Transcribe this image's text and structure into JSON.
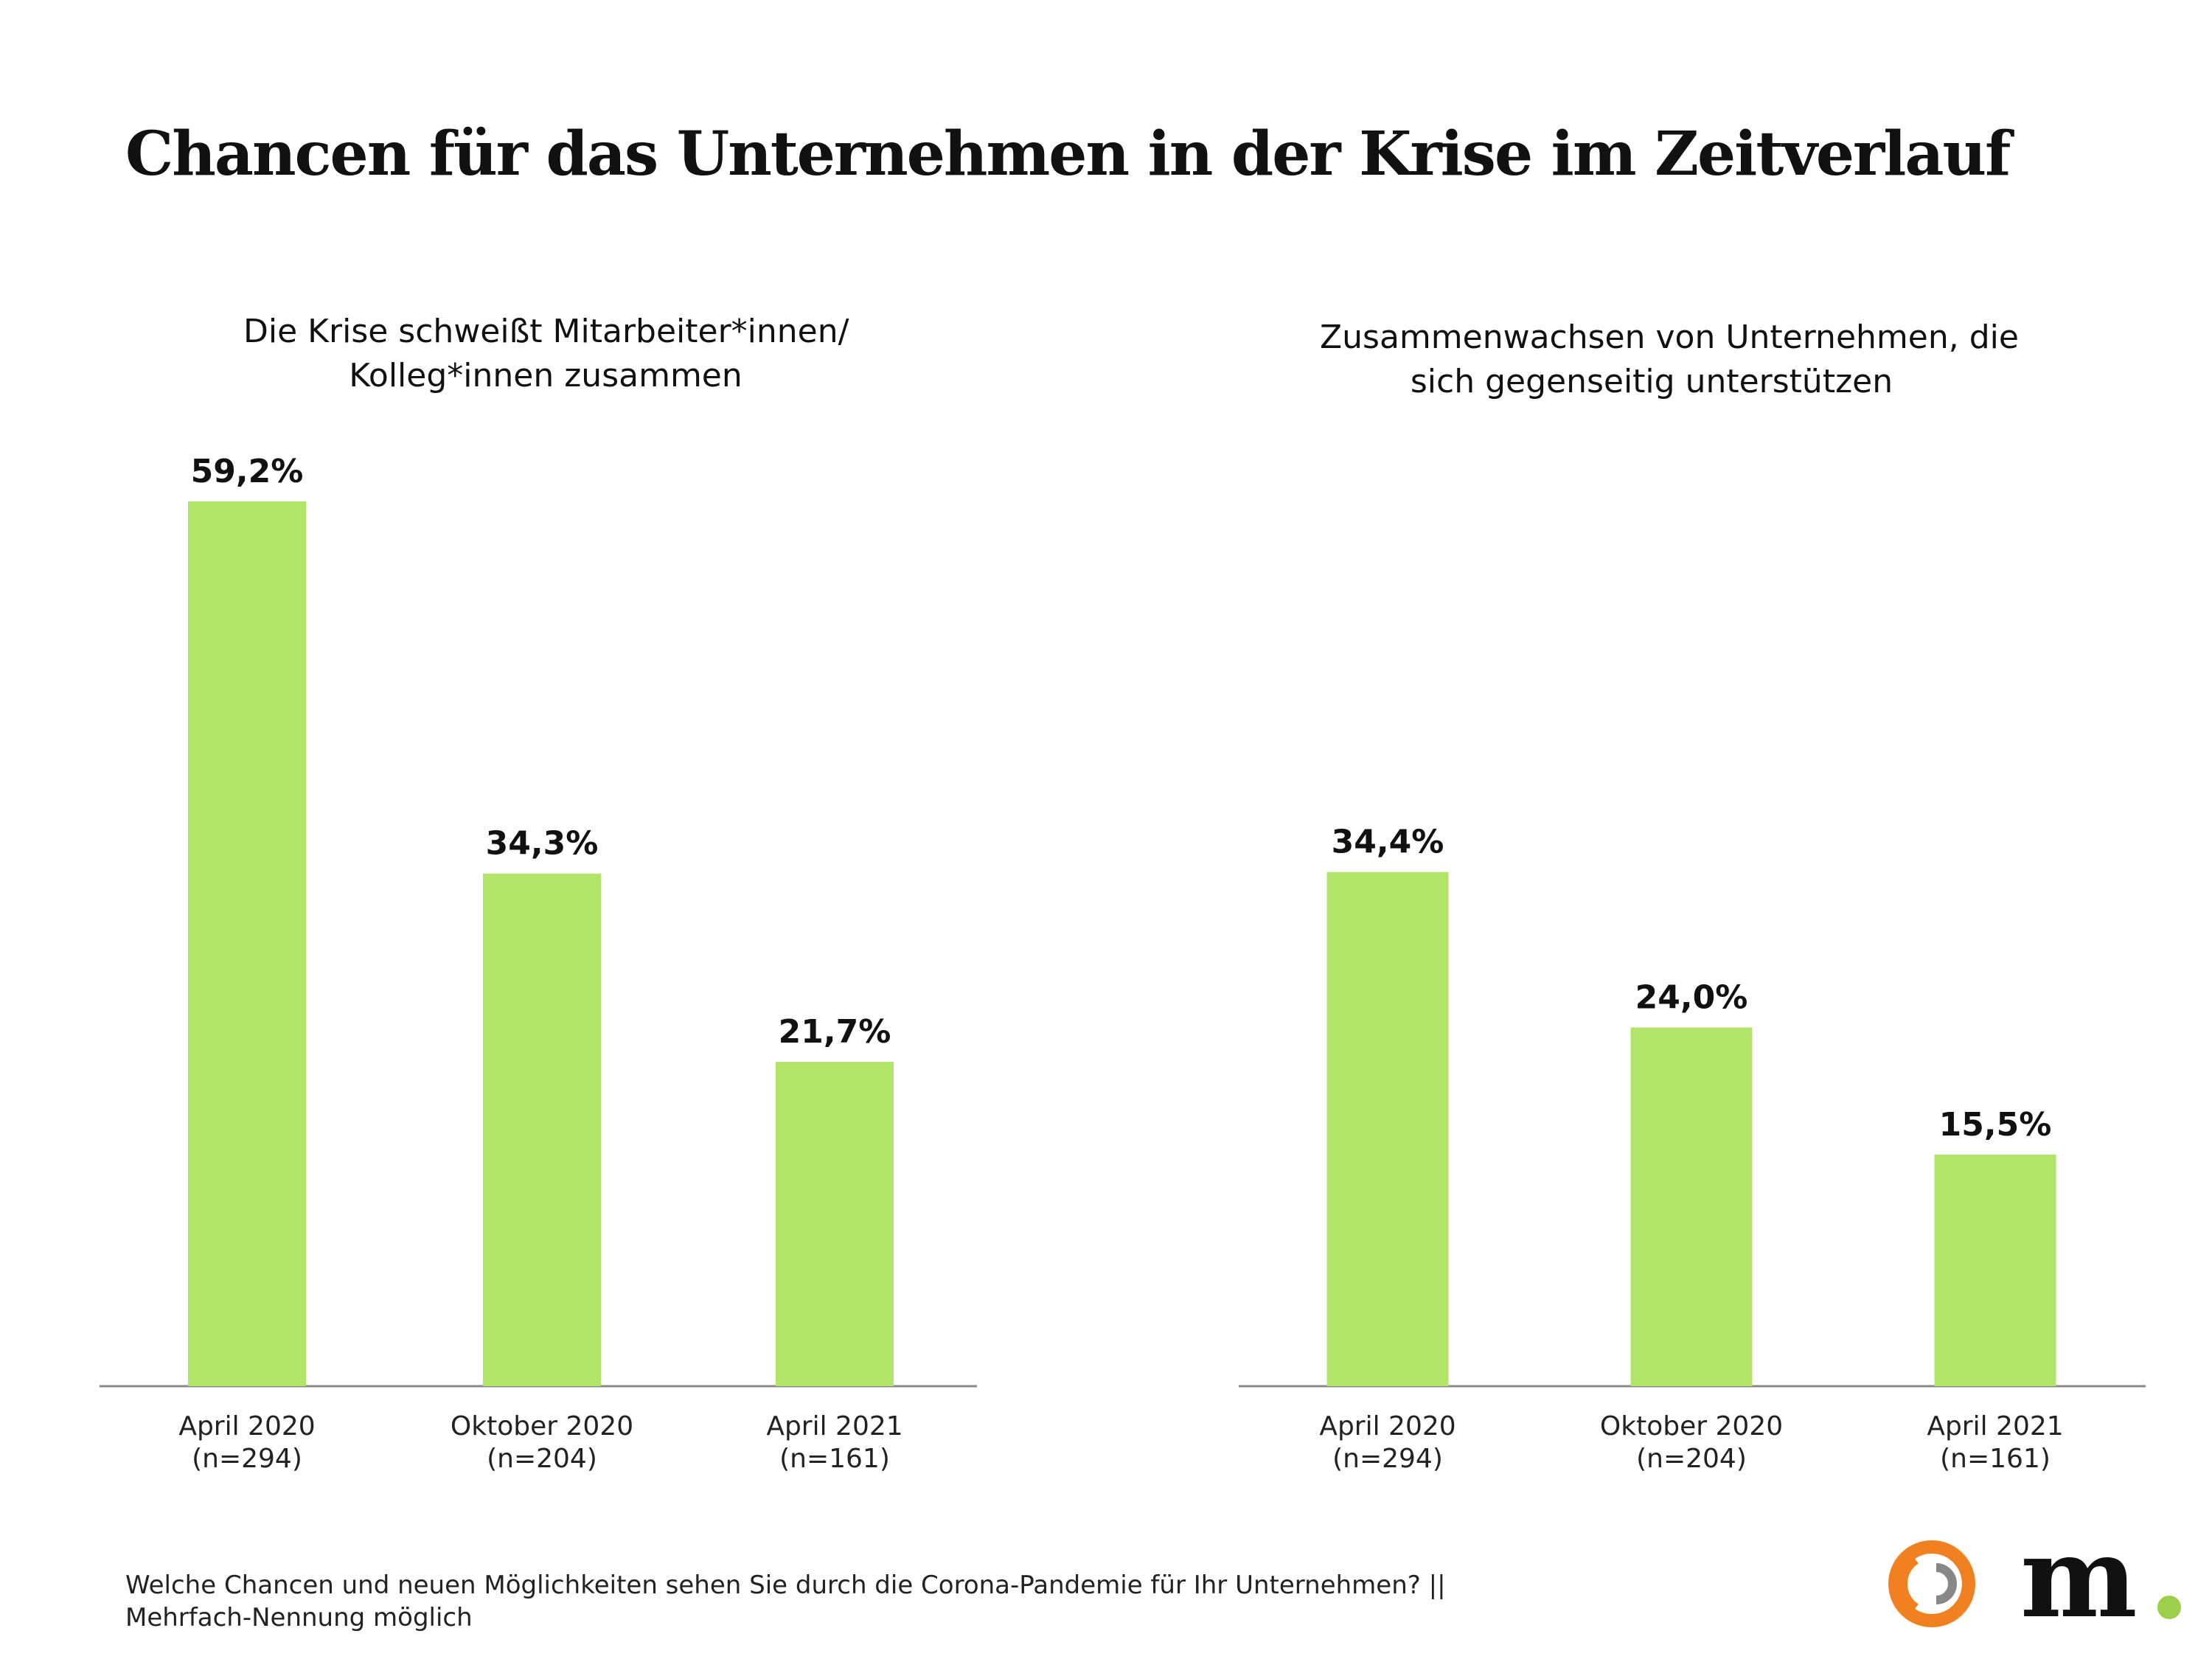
{
  "title": "Chancen für das Unternehmen in der Krise im Zeitverlauf",
  "colors": {
    "bar": "#b2e46a",
    "axis": "#888888",
    "logo_orange": "#f08020",
    "logo_grey": "#888888",
    "logo_green": "#9ecf4a"
  },
  "chart_data": [
    {
      "type": "bar",
      "title_lines": [
        "Die Krise schweißt Mitarbeiter*innen/",
        "Kolleg*innen zusammen"
      ],
      "categories": [
        "April 2020",
        "Oktober 2020",
        "April 2021"
      ],
      "category_notes": [
        "(n=294)",
        "(n=204)",
        "(n=161)"
      ],
      "values": [
        59.2,
        34.3,
        21.7
      ],
      "value_labels": [
        "59,2%",
        "34,3%",
        "21,7%"
      ],
      "ylim": [
        0,
        60
      ],
      "grid": false
    },
    {
      "type": "bar",
      "title_lines": [
        "Zusammenwachsen von Unternehmen, die",
        "sich gegenseitig unterstützen"
      ],
      "categories": [
        "April 2020",
        "Oktober 2020",
        "April 2021"
      ],
      "category_notes": [
        "(n=294)",
        "(n=204)",
        "(n=161)"
      ],
      "values": [
        34.4,
        24.0,
        15.5
      ],
      "value_labels": [
        "34,4%",
        "24,0%",
        "15,5%"
      ],
      "ylim": [
        0,
        60
      ],
      "grid": false
    }
  ],
  "footnote_lines": [
    "Welche Chancen und neuen Möglichkeiten sehen Sie durch die Corona-Pandemie für Ihr Unternehmen? ||",
    "Mehrfach-Nennung möglich"
  ],
  "logo": {
    "text": "m",
    "icon": "brand-ring-icon"
  }
}
